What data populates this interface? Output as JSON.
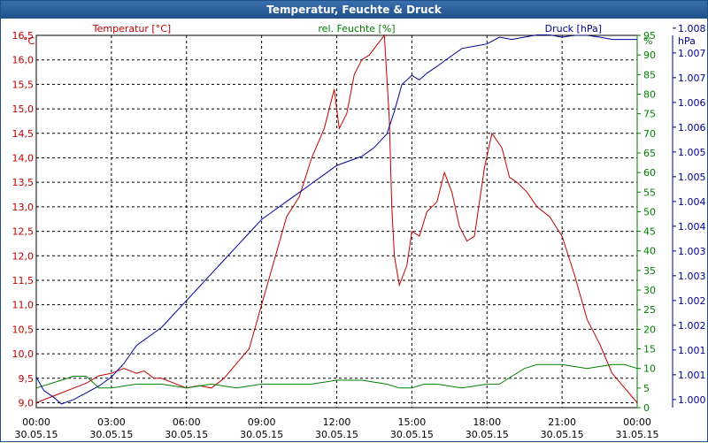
{
  "window": {
    "title": "Temperatur, Feuchte & Druck"
  },
  "colors": {
    "temperature": "#c00000",
    "humidity": "#008000",
    "pressure": "#000099",
    "grid": "#000000",
    "titlebar": "#1e4f8a"
  },
  "chart_data": {
    "type": "line",
    "title": "Temperatur, Feuchte & Druck",
    "x_ticks": [
      {
        "time": "00:00",
        "date": "30.05.15"
      },
      {
        "time": "03:00",
        "date": "30.05.15"
      },
      {
        "time": "06:00",
        "date": "30.05.15"
      },
      {
        "time": "09:00",
        "date": "30.05.15"
      },
      {
        "time": "12:00",
        "date": "30.05.15"
      },
      {
        "time": "15:00",
        "date": "30.05.15"
      },
      {
        "time": "18:00",
        "date": "30.05.15"
      },
      {
        "time": "21:00",
        "date": "30.05.15"
      },
      {
        "time": "00:00",
        "date": "31.05.15"
      }
    ],
    "xlim": [
      0,
      24
    ],
    "axes": {
      "temperature": {
        "label": "Temperatur [°C]",
        "unit": "°C",
        "ylim": [
          8.9,
          16.5
        ],
        "ticks": [
          "9,0",
          "9,5",
          "10,0",
          "10,5",
          "11,0",
          "11,5",
          "12,0",
          "12,5",
          "13,0",
          "13,5",
          "14,0",
          "14,5",
          "15,0",
          "15,5",
          "16,0",
          "16,5"
        ],
        "tick_values": [
          9.0,
          9.5,
          10.0,
          10.5,
          11.0,
          11.5,
          12.0,
          12.5,
          13.0,
          13.5,
          14.0,
          14.5,
          15.0,
          15.5,
          16.0,
          16.5
        ]
      },
      "humidity": {
        "label": "rel. Feuchte [%]",
        "unit": "%",
        "ylim": [
          0,
          95
        ],
        "ticks": [
          "0",
          "5",
          "10",
          "15",
          "20",
          "25",
          "30",
          "35",
          "40",
          "45",
          "50",
          "55",
          "60",
          "65",
          "70",
          "75",
          "80",
          "85",
          "90",
          "95"
        ],
        "tick_values": [
          0,
          5,
          10,
          15,
          20,
          25,
          30,
          35,
          40,
          45,
          50,
          55,
          60,
          65,
          70,
          75,
          80,
          85,
          90,
          95
        ]
      },
      "pressure": {
        "label": "Druck [hPa]",
        "unit": "hPa",
        "ylim": [
          999.82,
          1008.09
        ],
        "ticks": [
          "1.000",
          "1.001",
          "1.001",
          "1.002",
          "1.002",
          "1.003",
          "1.003",
          "1.004",
          "1.004",
          "1.005",
          "1.005",
          "1.006",
          "1.006",
          "1.007",
          "1.007",
          "1.008"
        ],
        "tick_values": [
          1000.0,
          1000.55,
          1001.1,
          1001.65,
          1002.2,
          1002.75,
          1003.3,
          1003.85,
          1004.4,
          1004.95,
          1005.5,
          1006.05,
          1006.6,
          1007.15,
          1007.7,
          1008.25
        ]
      }
    },
    "series": [
      {
        "name": "Temperatur",
        "axis": "temperature",
        "x": [
          0,
          0.5,
          1,
          1.5,
          2,
          2.5,
          3,
          3.5,
          4,
          4.3,
          4.7,
          5,
          5.5,
          6,
          6.5,
          7,
          7.5,
          8,
          8.5,
          9,
          9.5,
          10,
          10.5,
          11,
          11.5,
          11.9,
          12.1,
          12.4,
          12.7,
          13,
          13.3,
          13.6,
          13.9,
          14.1,
          14.2,
          14.3,
          14.5,
          14.8,
          15,
          15.3,
          15.6,
          16,
          16.3,
          16.6,
          16.9,
          17.2,
          17.5,
          17.9,
          18.2,
          18.6,
          18.9,
          19.2,
          19.6,
          20,
          20.5,
          21,
          21.5,
          22,
          22.5,
          23,
          23.5,
          24
        ],
        "values": [
          9.0,
          9.1,
          9.2,
          9.3,
          9.4,
          9.55,
          9.6,
          9.7,
          9.6,
          9.65,
          9.5,
          9.5,
          9.4,
          9.3,
          9.35,
          9.3,
          9.5,
          9.8,
          10.1,
          11.0,
          11.9,
          12.8,
          13.2,
          14.0,
          14.6,
          15.4,
          14.6,
          14.9,
          15.7,
          16.0,
          16.1,
          16.3,
          16.5,
          14.8,
          13.0,
          12.0,
          11.4,
          11.8,
          12.5,
          12.4,
          12.9,
          13.1,
          13.7,
          13.3,
          12.6,
          12.3,
          12.4,
          13.8,
          14.5,
          14.2,
          13.6,
          13.5,
          13.3,
          13.0,
          12.8,
          12.4,
          11.6,
          10.7,
          10.2,
          9.6,
          9.3,
          9.0
        ]
      },
      {
        "name": "rel. Feuchte",
        "axis": "humidity",
        "x": [
          0,
          1,
          1.5,
          2,
          2.5,
          3,
          4,
          5,
          6,
          7,
          8,
          9,
          10,
          11,
          12,
          13,
          14,
          14.5,
          15,
          15.5,
          16,
          17,
          18,
          18.5,
          19,
          19.5,
          20,
          21,
          22,
          23,
          23.5,
          24
        ],
        "values": [
          5,
          7,
          8,
          8,
          5,
          5,
          6,
          6,
          5,
          6,
          5,
          6,
          6,
          6,
          7,
          7,
          6,
          5,
          5,
          6,
          6,
          5,
          6,
          6,
          8,
          10,
          11,
          11,
          10,
          11,
          11,
          10
        ]
      },
      {
        "name": "Druck",
        "axis": "pressure",
        "x": [
          0,
          0.3,
          0.7,
          1,
          1.5,
          2,
          2.5,
          3,
          3.5,
          4,
          4.5,
          5,
          5.5,
          6,
          6.5,
          7,
          7.5,
          8,
          8.5,
          9,
          9.5,
          10,
          10.5,
          11,
          11.5,
          12,
          12.5,
          13,
          13.5,
          14,
          14.3,
          14.6,
          15,
          15.3,
          15.6,
          16,
          16.5,
          17,
          17.5,
          18,
          18.5,
          19,
          19.5,
          20,
          20.5,
          21,
          21.5,
          22,
          22.5,
          23,
          23.5,
          24
        ],
        "values": [
          1000.5,
          1000.2,
          1000.05,
          999.9,
          1000.0,
          1000.15,
          1000.3,
          1000.5,
          1000.8,
          1001.2,
          1001.4,
          1001.6,
          1001.9,
          1002.2,
          1002.5,
          1002.8,
          1003.1,
          1003.4,
          1003.7,
          1004.0,
          1004.2,
          1004.4,
          1004.6,
          1004.8,
          1005.0,
          1005.2,
          1005.3,
          1005.4,
          1005.6,
          1005.9,
          1006.4,
          1007.0,
          1007.2,
          1007.1,
          1007.25,
          1007.4,
          1007.6,
          1007.8,
          1007.85,
          1007.9,
          1008.05,
          1008.0,
          1008.05,
          1008.1,
          1008.1,
          1008.05,
          1008.09,
          1008.09,
          1008.05,
          1008.0,
          1008.0,
          1008.0
        ]
      }
    ]
  }
}
